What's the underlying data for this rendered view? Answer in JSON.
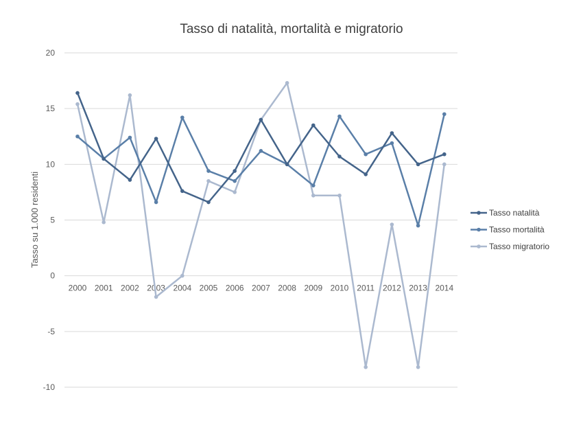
{
  "chart_data": {
    "type": "line",
    "title": "Tasso di natalità, mortalità e migratorio",
    "xlabel": "",
    "ylabel": "Tasso su 1.000 residenti",
    "ylim": [
      -10,
      20
    ],
    "yticks": [
      20,
      15,
      10,
      5,
      0,
      -5,
      -10
    ],
    "grid": true,
    "legend_position": "right",
    "categories": [
      "2000",
      "2001",
      "2002",
      "2003",
      "2004",
      "2005",
      "2006",
      "2007",
      "2008",
      "2009",
      "2010",
      "2011",
      "2012",
      "2013",
      "2014"
    ],
    "series": [
      {
        "name": "Tasso natalità",
        "color": "#44648a",
        "values": [
          16.4,
          10.5,
          8.6,
          12.3,
          7.6,
          6.6,
          9.4,
          14.0,
          10.0,
          13.5,
          10.7,
          9.1,
          12.8,
          10.0,
          10.9
        ]
      },
      {
        "name": "Tasso mortalità",
        "color": "#5a7fa8",
        "values": [
          12.5,
          10.5,
          12.4,
          6.6,
          14.2,
          9.4,
          8.5,
          11.2,
          10.0,
          8.1,
          14.3,
          10.9,
          11.9,
          4.5,
          14.5
        ]
      },
      {
        "name": "Tasso migratorio",
        "color": "#abb9cf",
        "values": [
          15.4,
          4.8,
          16.2,
          -1.9,
          0.0,
          8.5,
          7.5,
          14.0,
          17.3,
          7.2,
          7.2,
          -8.2,
          4.6,
          -8.2,
          10.0
        ]
      }
    ]
  }
}
